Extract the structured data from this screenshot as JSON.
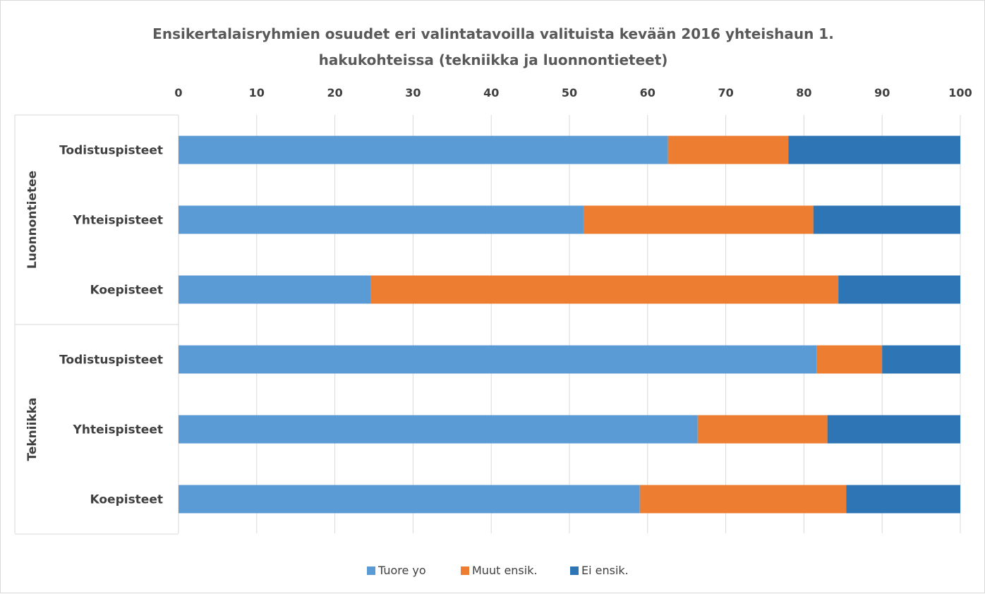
{
  "chart_data": {
    "type": "bar",
    "orientation": "horizontal",
    "stacked": true,
    "title": "Ensikertalaisryhmien  osuudet eri valintatavoilla valituista kevään 2016 yhteishaun 1. hakukohteissa (tekniikka ja luonnontieteet)",
    "title_lines": [
      "Ensikertalaisryhmien  osuudet eri valintatavoilla valituista kevään 2016 yhteishaun 1.",
      "hakukohteissa (tekniikka ja luonnontieteet)"
    ],
    "xlim": [
      0,
      100
    ],
    "x_ticks": [
      "0",
      "10",
      "20",
      "30",
      "40",
      "50",
      "60",
      "70",
      "80",
      "90",
      "100"
    ],
    "grid": true,
    "legend_position": "bottom",
    "groups": [
      {
        "name": "Luonnontietee",
        "categories": [
          "Todistuspisteet",
          "Yhteispisteet",
          "Koepisteet"
        ]
      },
      {
        "name": "Tekniikka",
        "categories": [
          "Todistuspisteet",
          "Yhteispisteet",
          "Koepisteet"
        ]
      }
    ],
    "series": [
      {
        "name": "Tuore yo",
        "color": "#5b9bd5",
        "values": [
          62.6,
          51.8,
          24.6,
          81.6,
          66.4,
          59.0
        ]
      },
      {
        "name": "Muut ensik.",
        "color": "#ed7d31",
        "values": [
          15.4,
          29.4,
          59.8,
          8.4,
          16.6,
          26.4
        ]
      },
      {
        "name": "Ei ensik.",
        "color": "#2e75b6",
        "values": [
          22.0,
          18.8,
          15.6,
          10.0,
          17.0,
          14.6
        ]
      }
    ]
  }
}
